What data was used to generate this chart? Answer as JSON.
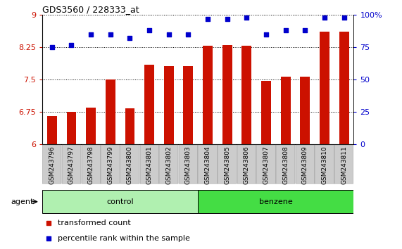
{
  "title": "GDS3560 / 228333_at",
  "categories": [
    "GSM243796",
    "GSM243797",
    "GSM243798",
    "GSM243799",
    "GSM243800",
    "GSM243801",
    "GSM243802",
    "GSM243803",
    "GSM243804",
    "GSM243805",
    "GSM243806",
    "GSM243807",
    "GSM243808",
    "GSM243809",
    "GSM243810",
    "GSM243811"
  ],
  "bar_values": [
    6.65,
    6.75,
    6.85,
    7.5,
    6.83,
    7.85,
    7.82,
    7.82,
    8.28,
    8.3,
    8.28,
    7.47,
    7.57,
    7.57,
    8.62,
    8.62
  ],
  "percentile_values": [
    75,
    77,
    85,
    85,
    82,
    88,
    85,
    85,
    97,
    97,
    98,
    85,
    88,
    88,
    98,
    98
  ],
  "bar_color": "#cc1100",
  "scatter_color": "#0000cc",
  "ylim_left": [
    6.0,
    9.0
  ],
  "ylim_right": [
    0,
    100
  ],
  "yticks_left": [
    6.0,
    6.75,
    7.5,
    8.25,
    9.0
  ],
  "ytick_labels_left": [
    "6",
    "6.75",
    "7.5",
    "8.25",
    "9"
  ],
  "yticks_right": [
    0,
    25,
    50,
    75,
    100
  ],
  "ytick_labels_right": [
    "0",
    "25",
    "50",
    "75",
    "100%"
  ],
  "control_count": 8,
  "control_label": "control",
  "benzene_label": "benzene",
  "agent_label": "agent",
  "legend_bar": "transformed count",
  "legend_scatter": "percentile rank within the sample",
  "bar_bottom": 6.0,
  "control_bg": "#b0f0b0",
  "benzene_bg": "#44dd44",
  "tick_bg": "#cccccc"
}
